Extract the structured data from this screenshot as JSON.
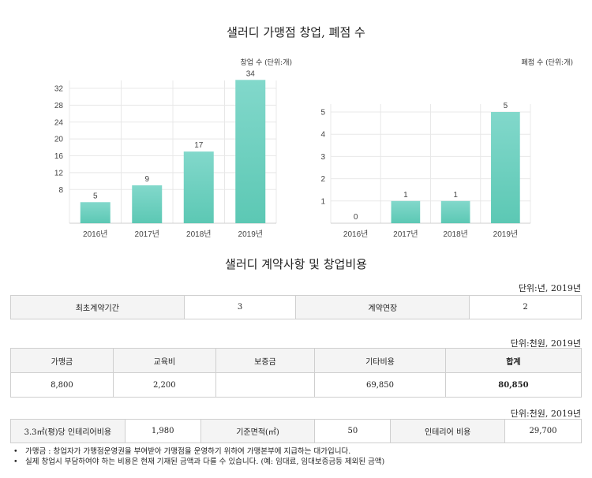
{
  "titles": {
    "charts": "샐러디 가맹점 창업, 폐점 수",
    "contract": "샐러디 계약사항 및 창업비용"
  },
  "colors": {
    "bar_top": "#82d8cb",
    "bar_bottom": "#5cc8b4"
  },
  "chart_data": [
    {
      "type": "bar",
      "title": "",
      "unit_label": "창업 수 (단위:개)",
      "categories": [
        "2016년",
        "2017년",
        "2018년",
        "2019년"
      ],
      "values": [
        5,
        9,
        17,
        34
      ],
      "yticks": [
        8,
        12,
        16,
        20,
        24,
        28,
        32
      ],
      "ylim": [
        0,
        36
      ],
      "grid": true
    },
    {
      "type": "bar",
      "title": "",
      "unit_label": "폐점 수 (단위:개)",
      "categories": [
        "2016년",
        "2017년",
        "2018년",
        "2019년"
      ],
      "values": [
        0,
        1,
        1,
        5
      ],
      "yticks": [
        1,
        2,
        3,
        4,
        5
      ],
      "ylim": [
        0,
        5
      ],
      "grid": true
    }
  ],
  "table1": {
    "unit": "단위:년, 2019년",
    "label1": "최초계약기간",
    "value1": "3",
    "label2": "계약연장",
    "value2": "2"
  },
  "table2": {
    "unit": "단위:천원, 2019년",
    "headers": [
      "가맹금",
      "교육비",
      "보증금",
      "기타비용",
      "합계"
    ],
    "values": [
      "8,800",
      "2,200",
      "",
      "69,850",
      "80,850"
    ]
  },
  "table3": {
    "unit": "단위:천원, 2019년",
    "label1": "3.3㎡(평)당 인테리어비용",
    "value1": "1,980",
    "label2": "기준면적(㎡)",
    "value2": "50",
    "label3": "인테리어 비용",
    "value3": "29,700"
  },
  "notes": [
    "가맹금 : 창업자가 가맹점운영권을 부여받아 가맹점을 운영하기 위하여 가맹본부에 지급하는 대가입니다.",
    "실제 창업시 부담하여야 하는 비용은 현재 기재된 금액과 다를 수 있습니다. (예: 임대료, 임대보증금등 제외된 금액)"
  ]
}
